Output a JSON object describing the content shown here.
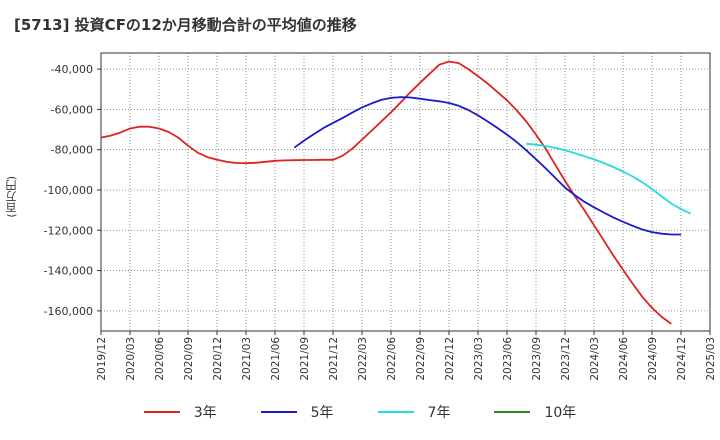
{
  "chart_data": {
    "type": "line",
    "title": "[5713]  投資CFの12か月移動合計の平均値の推移",
    "ylabel": "(百万円)",
    "xlabel": "",
    "ylim": [
      -170000,
      -32000
    ],
    "xlim": [
      "2019-12",
      "2025-03"
    ],
    "grid": true,
    "legend_position": "bottom",
    "y_ticks": [
      "-40,000",
      "-60,000",
      "-80,000",
      "-100,000",
      "-120,000",
      "-140,000",
      "-160,000"
    ],
    "y_tick_values": [
      -40000,
      -60000,
      -80000,
      -100000,
      -120000,
      -140000,
      -160000
    ],
    "x_ticks": [
      "2019/12",
      "2020/03",
      "2020/06",
      "2020/09",
      "2020/12",
      "2021/03",
      "2021/06",
      "2021/09",
      "2021/12",
      "2022/03",
      "2022/06",
      "2022/09",
      "2022/12",
      "2023/03",
      "2023/06",
      "2023/09",
      "2023/12",
      "2024/03",
      "2024/06",
      "2024/09",
      "2024/12",
      "2025/03"
    ],
    "x_tick_dates": [
      "2019-12",
      "2020-03",
      "2020-06",
      "2020-09",
      "2020-12",
      "2021-03",
      "2021-06",
      "2021-09",
      "2021-12",
      "2022-03",
      "2022-06",
      "2022-09",
      "2022-12",
      "2023-03",
      "2023-06",
      "2023-09",
      "2023-12",
      "2024-03",
      "2024-06",
      "2024-09",
      "2024-12",
      "2025-03"
    ],
    "series": [
      {
        "name": "3年",
        "color": "#dd2222",
        "points": [
          [
            "2019-12",
            -74000
          ],
          [
            "2020-01",
            -73000
          ],
          [
            "2020-02",
            -71500
          ],
          [
            "2020-03",
            -69500
          ],
          [
            "2020-04",
            -68600
          ],
          [
            "2020-05",
            -68600
          ],
          [
            "2020-06",
            -69500
          ],
          [
            "2020-07",
            -71200
          ],
          [
            "2020-08",
            -74000
          ],
          [
            "2020-09",
            -78000
          ],
          [
            "2020-10",
            -81500
          ],
          [
            "2020-11",
            -83700
          ],
          [
            "2020-12",
            -85000
          ],
          [
            "2021-01",
            -86000
          ],
          [
            "2021-02",
            -86600
          ],
          [
            "2021-03",
            -86700
          ],
          [
            "2021-04",
            -86500
          ],
          [
            "2021-05",
            -86000
          ],
          [
            "2021-06",
            -85500
          ],
          [
            "2021-07",
            -85300
          ],
          [
            "2021-08",
            -85200
          ],
          [
            "2021-09",
            -85100
          ],
          [
            "2021-10",
            -85100
          ],
          [
            "2021-11",
            -85000
          ],
          [
            "2021-12",
            -85000
          ],
          [
            "2022-01",
            -83000
          ],
          [
            "2022-02",
            -79500
          ],
          [
            "2022-03",
            -75000
          ],
          [
            "2022-04",
            -70500
          ],
          [
            "2022-05",
            -66000
          ],
          [
            "2022-06",
            -61500
          ],
          [
            "2022-07",
            -56500
          ],
          [
            "2022-08",
            -51500
          ],
          [
            "2022-09",
            -46800
          ],
          [
            "2022-10",
            -42300
          ],
          [
            "2022-11",
            -37800
          ],
          [
            "2022-12",
            -36200
          ],
          [
            "2023-01",
            -37000
          ],
          [
            "2023-02",
            -40000
          ],
          [
            "2023-03",
            -43500
          ],
          [
            "2023-04",
            -47200
          ],
          [
            "2023-05",
            -51300
          ],
          [
            "2023-06",
            -55500
          ],
          [
            "2023-07",
            -60500
          ],
          [
            "2023-08",
            -66000
          ],
          [
            "2023-09",
            -72500
          ],
          [
            "2023-10",
            -79500
          ],
          [
            "2023-11",
            -87500
          ],
          [
            "2023-12",
            -95500
          ],
          [
            "2024-01",
            -103000
          ],
          [
            "2024-02",
            -110000
          ],
          [
            "2024-03",
            -117500
          ],
          [
            "2024-04",
            -125000
          ],
          [
            "2024-05",
            -132500
          ],
          [
            "2024-06",
            -139500
          ],
          [
            "2024-07",
            -146500
          ],
          [
            "2024-08",
            -153000
          ],
          [
            "2024-09",
            -158500
          ],
          [
            "2024-10",
            -163000
          ],
          [
            "2024-11",
            -166500
          ]
        ]
      },
      {
        "name": "5年",
        "color": "#1a1acc",
        "points": [
          [
            "2021-08",
            -79000
          ],
          [
            "2021-09",
            -75500
          ],
          [
            "2021-10",
            -72300
          ],
          [
            "2021-11",
            -69300
          ],
          [
            "2021-12",
            -66700
          ],
          [
            "2022-01",
            -64200
          ],
          [
            "2022-02",
            -61600
          ],
          [
            "2022-03",
            -59000
          ],
          [
            "2022-04",
            -57000
          ],
          [
            "2022-05",
            -55300
          ],
          [
            "2022-06",
            -54300
          ],
          [
            "2022-07",
            -53900
          ],
          [
            "2022-08",
            -54100
          ],
          [
            "2022-09",
            -54700
          ],
          [
            "2022-10",
            -55400
          ],
          [
            "2022-11",
            -56000
          ],
          [
            "2022-12",
            -56800
          ],
          [
            "2023-01",
            -58200
          ],
          [
            "2023-02",
            -60300
          ],
          [
            "2023-03",
            -63000
          ],
          [
            "2023-04",
            -66000
          ],
          [
            "2023-05",
            -69200
          ],
          [
            "2023-06",
            -72500
          ],
          [
            "2023-07",
            -76200
          ],
          [
            "2023-08",
            -80300
          ],
          [
            "2023-09",
            -84700
          ],
          [
            "2023-10",
            -89300
          ],
          [
            "2023-11",
            -94000
          ],
          [
            "2023-12",
            -98800
          ],
          [
            "2024-01",
            -102500
          ],
          [
            "2024-02",
            -105800
          ],
          [
            "2024-03",
            -108600
          ],
          [
            "2024-04",
            -111200
          ],
          [
            "2024-05",
            -113600
          ],
          [
            "2024-06",
            -115800
          ],
          [
            "2024-07",
            -117800
          ],
          [
            "2024-08",
            -119600
          ],
          [
            "2024-09",
            -120900
          ],
          [
            "2024-10",
            -121700
          ],
          [
            "2024-11",
            -122100
          ],
          [
            "2024-12",
            -122100
          ]
        ]
      },
      {
        "name": "7年",
        "color": "#22dddd",
        "points": [
          [
            "2023-08",
            -77000
          ],
          [
            "2023-09",
            -77500
          ],
          [
            "2023-10",
            -78200
          ],
          [
            "2023-11",
            -79100
          ],
          [
            "2023-12",
            -80300
          ],
          [
            "2024-01",
            -81700
          ],
          [
            "2024-02",
            -83200
          ],
          [
            "2024-03",
            -84800
          ],
          [
            "2024-04",
            -86600
          ],
          [
            "2024-05",
            -88600
          ],
          [
            "2024-06",
            -90800
          ],
          [
            "2024-07",
            -93300
          ],
          [
            "2024-08",
            -96200
          ],
          [
            "2024-09",
            -99500
          ],
          [
            "2024-10",
            -103200
          ],
          [
            "2024-11",
            -106700
          ],
          [
            "2024-12",
            -109500
          ],
          [
            "2025-01",
            -111700
          ]
        ]
      },
      {
        "name": "10年",
        "color": "#228b22",
        "points": []
      }
    ]
  }
}
